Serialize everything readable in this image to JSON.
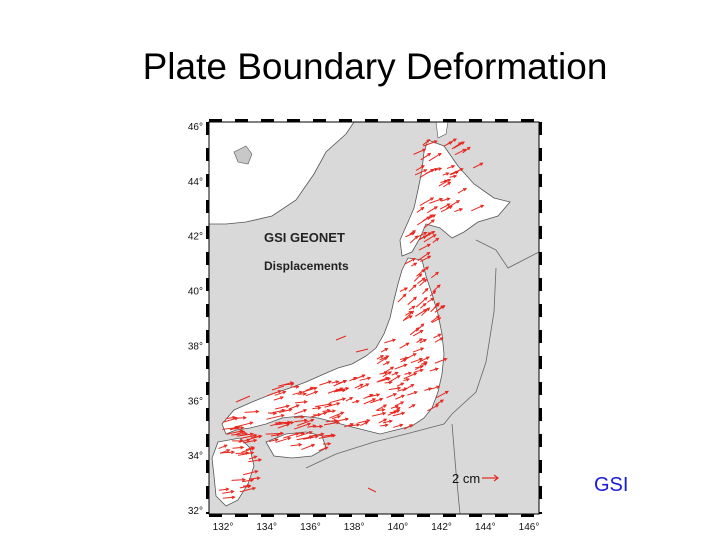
{
  "slide": {
    "title": "Plate Boundary Deformation",
    "credit": "GSI"
  },
  "map": {
    "label_line1": "GSI GEONET",
    "label_line2": "Displacements",
    "scale_label": "2 cm",
    "lat_ticks": [
      "46°",
      "44°",
      "42°",
      "40°",
      "38°",
      "36°",
      "34°",
      "32°"
    ],
    "lon_ticks": [
      "132°",
      "134°",
      "136°",
      "138°",
      "140°",
      "142°",
      "144°",
      "146°"
    ],
    "colors": {
      "sea": "#d9d9d9",
      "land": "#ffffff",
      "vector": "#e8261e",
      "frame": "#000000"
    }
  }
}
